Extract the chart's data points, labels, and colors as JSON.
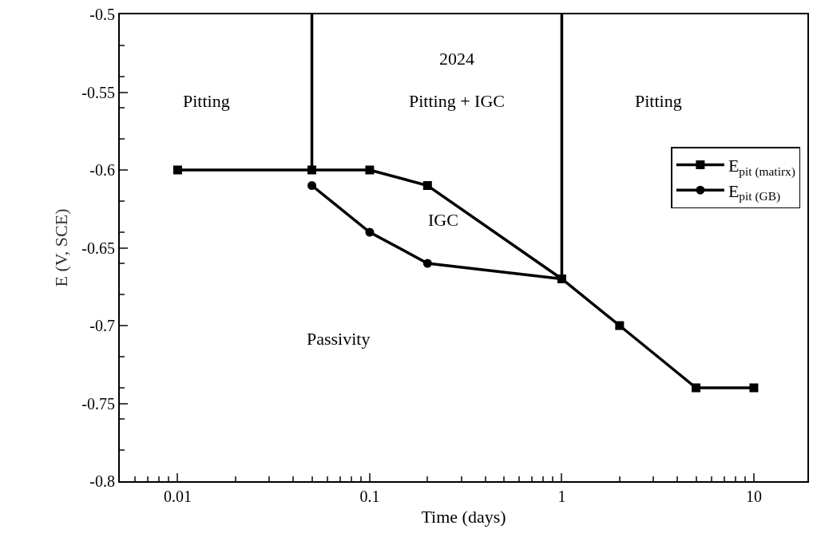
{
  "chart_data": {
    "type": "line",
    "xlabel": "Time (days)",
    "ylabel": "E (V, SCE)",
    "log": "x",
    "xlim": [
      0.005,
      19
    ],
    "xticks": [
      0.01,
      0.1,
      1,
      10
    ],
    "ylim": [
      -0.8,
      -0.5
    ],
    "yticks": [
      -0.8,
      -0.75,
      -0.7,
      -0.65,
      -0.6,
      -0.55,
      -0.5
    ],
    "legend": "right",
    "line_style": "solid",
    "series": [
      {
        "name": "E$_{pit (matirx)}$",
        "color": "#000000",
        "marker": "square",
        "x": [
          0.01,
          0.05,
          0.1,
          0.2,
          1,
          2,
          5,
          10
        ],
        "values": [
          -0.6,
          -0.6,
          -0.6,
          -0.61,
          -0.67,
          -0.7,
          -0.74,
          -0.74
        ]
      },
      {
        "name": "E$_{pit (GB)}$",
        "color": "#000000",
        "marker": "circle",
        "x": [
          0.05,
          0.1,
          0.2,
          1
        ],
        "values": [
          -0.61,
          -0.64,
          -0.66,
          -0.67
        ]
      },
      {
        "color": "#000000",
        "marker": "none",
        "x": [
          0.05,
          0.05
        ],
        "values": [
          -0.5,
          -0.6
        ]
      },
      {
        "color": "#000000",
        "marker": "none",
        "x": [
          1,
          1
        ],
        "values": [
          -0.5,
          -0.67
        ]
      }
    ],
    "annotations": [
      "2024",
      "Pitting",
      "Pitting + IGC",
      "Pitting",
      "IGC",
      "Passivity"
    ]
  }
}
